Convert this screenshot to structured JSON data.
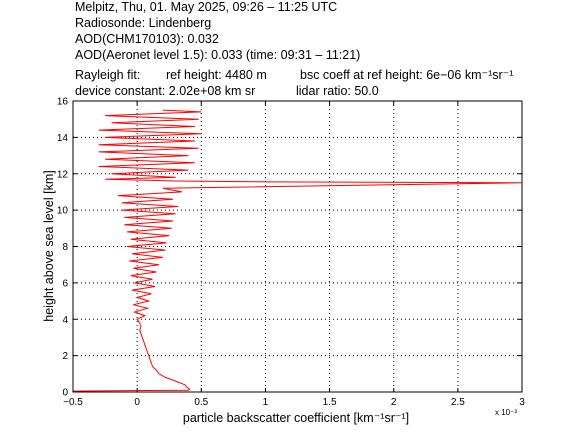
{
  "header": {
    "line1": "Melpitz, Thu, 01. May 2025, 09:26 – 11:25 UTC",
    "line2": "Radiosonde: Lindenberg",
    "line3": "AOD(CHM170103): 0.032",
    "line4": "AOD(Aeronet level 1.5): 0.033   (time: 09:31 – 11:21)",
    "line5a": "Rayleigh fit:",
    "line5b": "ref height: 4480 m",
    "line5c": "bsc coeff at ref height: 6e−06 km⁻¹sr⁻¹",
    "line6a": "device constant: 2.02e+08 km sr",
    "line6b": "lidar ratio: 50.0"
  },
  "chart_data": {
    "type": "line",
    "title": "",
    "xlabel": "particle backscatter coefficient [km⁻¹sr⁻¹]",
    "ylabel": "height above sea level [km]",
    "xlim": [
      -0.5,
      3
    ],
    "ylim": [
      0,
      16
    ],
    "x_scale_label": "x 10⁻³",
    "x_ticks": [
      "−0.5",
      "0",
      "0.5",
      "1",
      "1.5",
      "2",
      "2.5",
      "3"
    ],
    "x_tick_values": [
      -0.5,
      0,
      0.5,
      1,
      1.5,
      2,
      2.5,
      3
    ],
    "y_ticks": [
      "0",
      "2",
      "4",
      "6",
      "8",
      "10",
      "12",
      "14",
      "16"
    ],
    "y_tick_values": [
      0,
      2,
      4,
      6,
      8,
      10,
      12,
      14,
      16
    ],
    "grid": true,
    "line_color": "#ff0000",
    "series": [
      {
        "y": [
          0.05,
          0.1,
          0.15,
          0.25,
          0.4,
          0.6,
          0.8,
          1.0,
          1.2,
          1.4,
          1.6,
          1.8,
          2.0,
          2.2,
          2.4,
          2.6,
          2.8,
          3.0,
          3.2,
          3.4,
          3.6,
          3.8,
          4.0,
          4.2,
          4.4,
          4.6,
          4.8,
          5.0,
          5.2,
          5.4,
          5.6,
          5.8,
          6.0,
          6.2,
          6.4,
          6.6,
          6.8,
          7.0,
          7.2,
          7.4,
          7.6,
          7.8,
          8.0,
          8.2,
          8.4,
          8.6,
          8.8,
          9.0,
          9.2,
          9.4,
          9.6,
          9.8,
          10.0,
          10.2,
          10.4,
          10.6,
          10.8,
          11.0,
          11.2,
          11.4,
          11.5,
          11.55,
          11.6,
          11.7,
          11.8,
          12.0,
          12.2,
          12.4,
          12.6,
          12.8,
          13.0,
          13.2,
          13.4,
          13.6,
          13.8,
          14.0,
          14.2,
          14.4,
          14.6,
          14.8,
          15.0,
          15.2,
          15.4,
          15.5
        ],
        "x": [
          -0.5,
          0.4,
          0.41,
          0.39,
          0.37,
          0.3,
          0.22,
          0.17,
          0.15,
          0.12,
          0.11,
          0.1,
          0.09,
          0.08,
          0.07,
          0.06,
          0.05,
          0.04,
          0.03,
          0.02,
          0.03,
          0.02,
          0.0,
          0.06,
          -0.02,
          0.08,
          -0.03,
          0.09,
          0.0,
          0.11,
          -0.04,
          0.14,
          -0.02,
          0.12,
          -0.05,
          0.15,
          -0.03,
          0.17,
          -0.06,
          0.2,
          -0.04,
          0.22,
          -0.08,
          0.23,
          -0.05,
          0.25,
          -0.08,
          0.27,
          -0.1,
          0.28,
          -0.1,
          0.3,
          -0.12,
          0.32,
          -0.12,
          0.28,
          -0.15,
          0.35,
          0.2,
          2.0,
          3.0,
          1.0,
          0.3,
          -0.25,
          0.3,
          -0.2,
          0.4,
          -0.3,
          0.45,
          -0.25,
          0.4,
          -0.3,
          0.48,
          -0.3,
          0.45,
          -0.25,
          0.5,
          -0.3,
          0.45,
          -0.2,
          0.48,
          -0.25,
          0.5,
          0.2
        ]
      }
    ]
  }
}
